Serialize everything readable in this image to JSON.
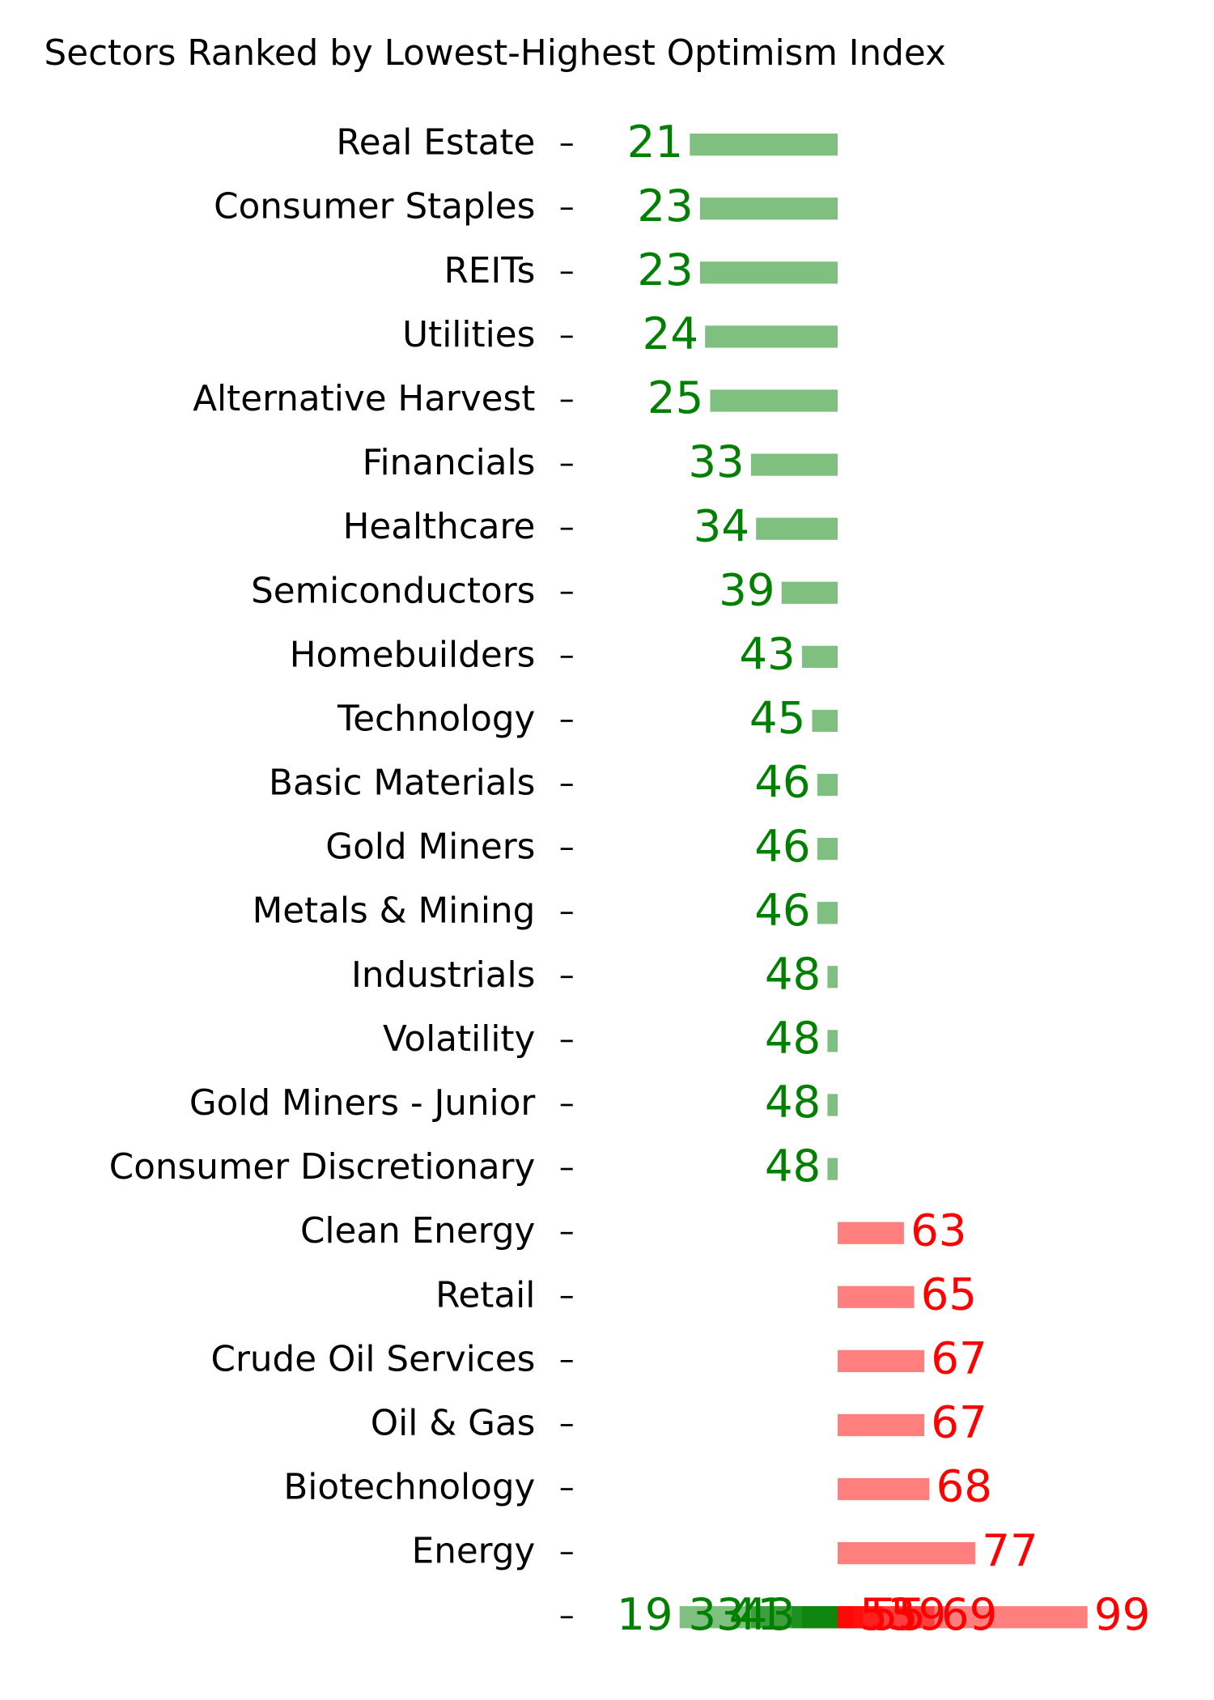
{
  "chart_data": {
    "type": "diverging-bar",
    "title": "Sectors Ranked by Lowest-Highest Optimism Index",
    "categories": [
      "Real Estate",
      "Consumer Staples",
      "REITs",
      "Utilities",
      "Alternative Harvest",
      "Financials",
      "Healthcare",
      "Semiconductors",
      "Homebuilders",
      "Technology",
      "Basic Materials",
      "Gold Miners",
      "Metals & Mining",
      "Industrials",
      "Volatility",
      "Gold Miners - Junior",
      "Consumer Discretionary",
      "Clean Energy",
      "Retail",
      "Crude Oil Services",
      "Oil & Gas",
      "Biotechnology",
      "Energy",
      null
    ],
    "values": [
      21,
      23,
      23,
      24,
      25,
      33,
      34,
      39,
      43,
      45,
      46,
      46,
      46,
      48,
      48,
      48,
      48,
      63,
      65,
      67,
      67,
      68,
      77,
      null
    ],
    "last_row_values": [
      19,
      33,
      41,
      43,
      53,
      55,
      59,
      69,
      99
    ],
    "baseline": 50,
    "low_color": "#008000",
    "high_color": "#ff0000"
  }
}
